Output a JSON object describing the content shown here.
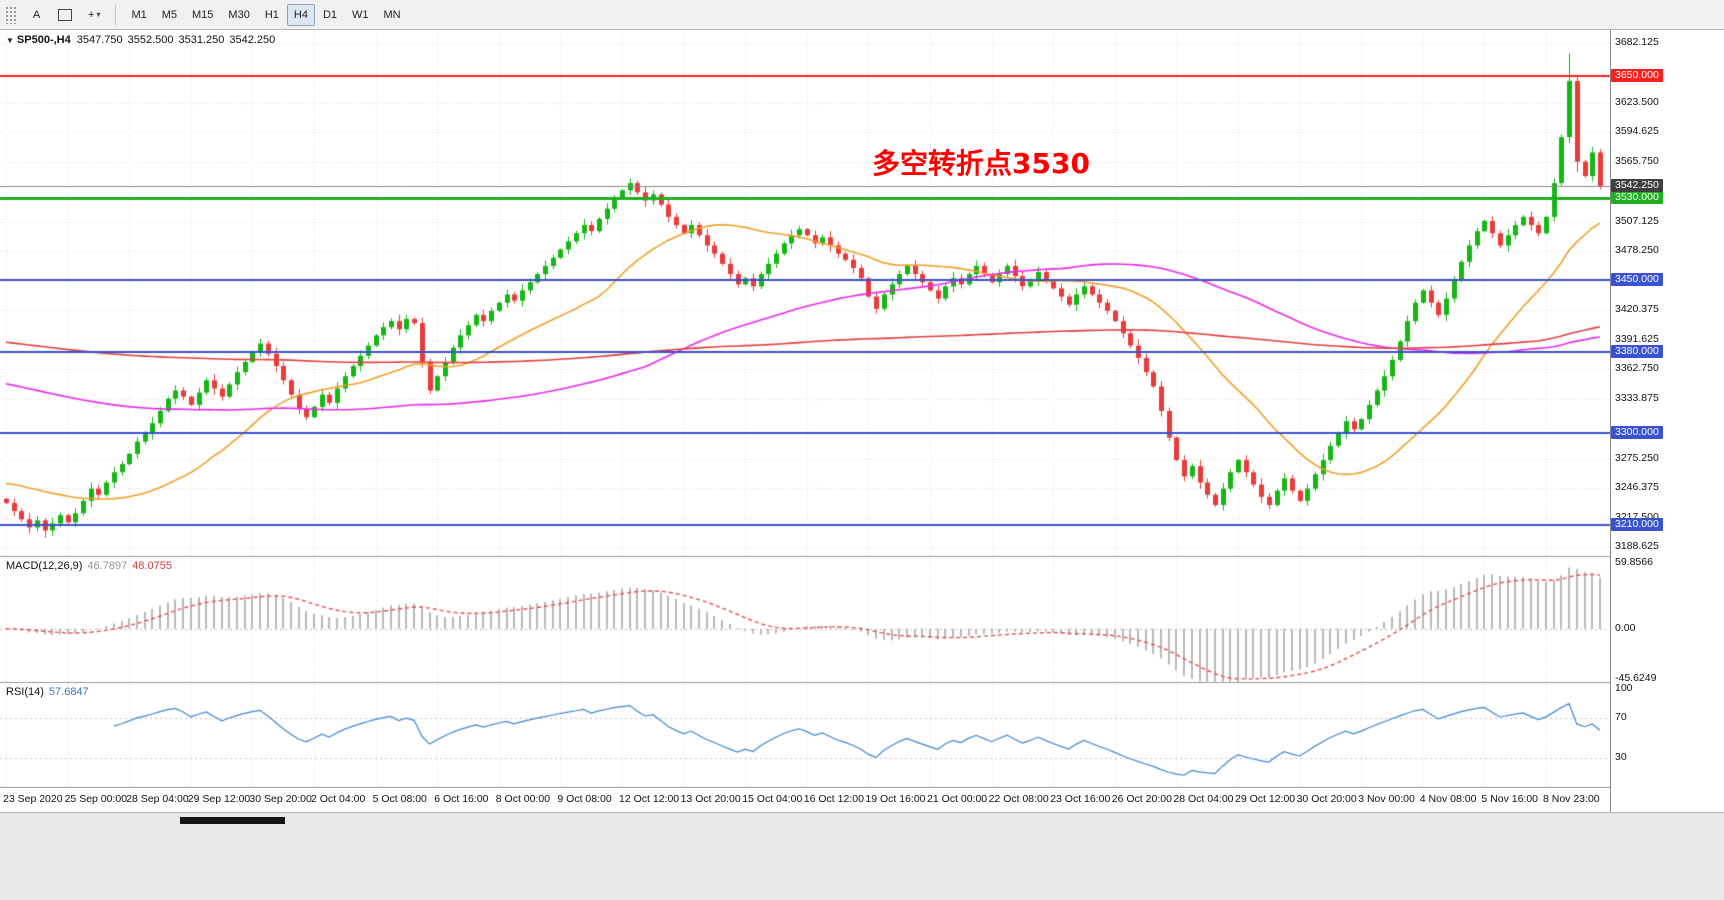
{
  "toolbar": {
    "letter_tool": "A",
    "crosshair_glyph": "+",
    "caret_glyph": "▾",
    "timeframes": [
      "M1",
      "M5",
      "M15",
      "M30",
      "H1",
      "H4",
      "D1",
      "W1",
      "MN"
    ],
    "active_timeframe": "H4"
  },
  "title": {
    "collapse_icon": "▼",
    "symbol": "SP500-,H4",
    "open": "3547.750",
    "high": "3552.500",
    "low": "3531.250",
    "close": "3542.250"
  },
  "chart_data": {
    "type": "candlestick+indicators",
    "symbol": "SP500-",
    "timeframe": "H4",
    "last_bar": {
      "open": 3547.75,
      "high": 3552.5,
      "low": 3531.25,
      "close": 3542.25
    },
    "bars_per_label": 8,
    "open_first": 3236,
    "x_labels": [
      "23 Sep 2020",
      "25 Sep 00:00",
      "28 Sep 04:00",
      "29 Sep 12:00",
      "30 Sep 20:00",
      "2 Oct 04:00",
      "5 Oct 08:00",
      "6 Oct 16:00",
      "8 Oct 00:00",
      "9 Oct 08:00",
      "12 Oct 12:00",
      "13 Oct 20:00",
      "15 Oct 04:00",
      "16 Oct 12:00",
      "19 Oct 16:00",
      "21 Oct 00:00",
      "22 Oct 08:00",
      "23 Oct 16:00",
      "26 Oct 20:00",
      "28 Oct 04:00",
      "29 Oct 12:00",
      "30 Oct 20:00",
      "3 Nov 00:00",
      "4 Nov 08:00",
      "5 Nov 16:00",
      "8 Nov 23:00"
    ],
    "closes": [
      3232,
      3224,
      3216,
      3208,
      3215,
      3205,
      3212,
      3220,
      3213,
      3222,
      3234,
      3246,
      3240,
      3252,
      3262,
      3270,
      3280,
      3292,
      3300,
      3310,
      3322,
      3334,
      3342,
      3336,
      3328,
      3340,
      3352,
      3344,
      3336,
      3348,
      3360,
      3370,
      3380,
      3388,
      3378,
      3366,
      3352,
      3338,
      3324,
      3316,
      3326,
      3338,
      3330,
      3344,
      3356,
      3366,
      3376,
      3386,
      3396,
      3404,
      3410,
      3402,
      3412,
      3408,
      3370,
      3342,
      3356,
      3370,
      3384,
      3396,
      3406,
      3416,
      3410,
      3420,
      3428,
      3436,
      3430,
      3440,
      3448,
      3456,
      3464,
      3472,
      3480,
      3488,
      3496,
      3504,
      3498,
      3510,
      3520,
      3530,
      3538,
      3545,
      3536,
      3528,
      3534,
      3524,
      3512,
      3504,
      3496,
      3504,
      3494,
      3484,
      3476,
      3466,
      3456,
      3446,
      3452,
      3444,
      3456,
      3466,
      3476,
      3486,
      3494,
      3500,
      3494,
      3486,
      3492,
      3484,
      3476,
      3470,
      3462,
      3452,
      3434,
      3422,
      3436,
      3446,
      3456,
      3464,
      3456,
      3448,
      3440,
      3432,
      3444,
      3452,
      3446,
      3456,
      3464,
      3456,
      3448,
      3456,
      3464,
      3454,
      3444,
      3450,
      3458,
      3450,
      3442,
      3434,
      3426,
      3436,
      3444,
      3436,
      3428,
      3420,
      3410,
      3398,
      3386,
      3374,
      3360,
      3346,
      3322,
      3296,
      3274,
      3258,
      3268,
      3252,
      3240,
      3230,
      3246,
      3262,
      3274,
      3262,
      3250,
      3238,
      3230,
      3244,
      3256,
      3244,
      3234,
      3246,
      3260,
      3274,
      3288,
      3300,
      3312,
      3304,
      3314,
      3328,
      3342,
      3356,
      3372,
      3390,
      3410,
      3428,
      3440,
      3428,
      3416,
      3432,
      3450,
      3468,
      3484,
      3498,
      3508,
      3496,
      3484,
      3494,
      3504,
      3512,
      3504,
      3496,
      3512,
      3545,
      3590,
      3645,
      3566,
      3552,
      3575,
      3542.25
    ],
    "wick_overrides": {
      "5": {
        "low": 3198
      },
      "203": {
        "high": 3672
      },
      "204": {
        "low": 3556
      }
    },
    "y_axis": {
      "range_top": 3690,
      "range_bottom": 3183,
      "ticks": [
        3682.125,
        3623.5,
        3594.625,
        3565.75,
        3507.125,
        3478.25,
        3420.375,
        3391.625,
        3362.75,
        3333.875,
        3275.25,
        3246.375,
        3217.5,
        3188.625
      ]
    },
    "levels": [
      {
        "value": 3650.0,
        "label": "3650.000",
        "color": "#ff1e1e",
        "width": 2
      },
      {
        "value": 3530.0,
        "label": "3530.000",
        "color": "#1fae1f",
        "width": 3
      },
      {
        "value": 3450.0,
        "label": "3450.000",
        "color": "#3a52d0",
        "width": 2
      },
      {
        "value": 3380.0,
        "label": "3380.000",
        "color": "#3a52d0",
        "width": 2
      },
      {
        "value": 3300.0,
        "label": "3300.000",
        "color": "#3a52d0",
        "width": 2
      },
      {
        "value": 3210.0,
        "label": "3210.000",
        "color": "#3a52d0",
        "width": 2
      }
    ],
    "current_price": {
      "value": 3542.25,
      "label": "3542.250",
      "bg": "#404040",
      "line_color": "#8a8a8a"
    },
    "candle_colors": {
      "up": "#14b714",
      "down": "#ea3b3b"
    },
    "moving_averages": [
      {
        "name": "ma-fast",
        "period": 24,
        "prehistory": 3252,
        "color": "#f0a028"
      },
      {
        "name": "ma-medium",
        "period": 84,
        "prehistory": 3350,
        "color": "#ea29ea"
      },
      {
        "name": "ma-slow",
        "period": 200,
        "prehistory": 3390,
        "color": "#e04040"
      }
    ],
    "macd": {
      "label": "MACD(12,26,9)",
      "value_main": "46.7897",
      "value_signal": "48.0755",
      "fast": 12,
      "slow": 26,
      "signal": 9,
      "ticks": [
        {
          "v": 59.8566,
          "t": "59.8566"
        },
        {
          "v": 0,
          "t": "0.00"
        },
        {
          "v": -45.6249,
          "t": "-45.6249"
        }
      ],
      "hist_color": "#b8b8b8",
      "signal_color": "#e85050"
    },
    "rsi": {
      "label": "RSI(14)",
      "value": "57.6847",
      "period": 14,
      "ticks": [
        {
          "v": 100,
          "t": "100"
        },
        {
          "v": 70,
          "t": "70"
        },
        {
          "v": 30,
          "t": "30"
        }
      ],
      "guides": [
        70,
        30
      ],
      "color": "#3f87cf"
    },
    "annotation": {
      "text": "多空转折点3530",
      "color": "#ff0000"
    },
    "grid_color": "#e3e3e3"
  }
}
